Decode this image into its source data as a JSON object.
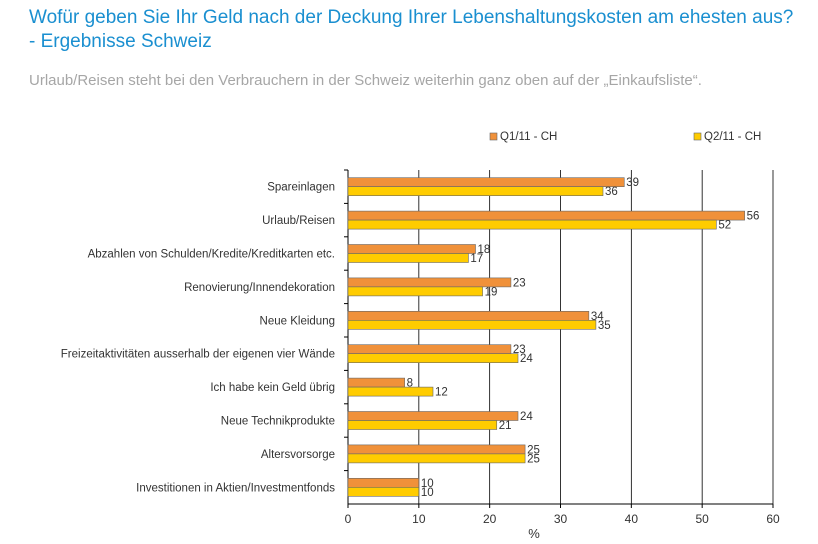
{
  "title": "Wofür geben Sie Ihr Geld nach der Deckung Ihrer Lebenshaltungskosten am ehesten aus? - Ergebnisse Schweiz",
  "subtitle": "Urlaub/Reisen steht bei den Verbrauchern in der Schweiz weiterhin ganz oben auf der „Einkaufsliste“.",
  "chart_data": {
    "type": "bar",
    "orientation": "horizontal",
    "categories": [
      "Spareinlagen",
      "Urlaub/Reisen",
      "Abzahlen von Schulden/Kredite/Kreditkarten etc.",
      "Renovierung/Innendekoration",
      "Neue Kleidung",
      "Freizeitaktivitäten ausserhalb der eigenen vier Wände",
      "Ich habe kein Geld übrig",
      "Neue Technikprodukte",
      "Altersvorsorge",
      "Investitionen in Aktien/Investmentfonds"
    ],
    "series": [
      {
        "name": "Q1/11 - CH",
        "color": "#f0913a",
        "values": [
          39,
          56,
          18,
          23,
          34,
          23,
          8,
          24,
          25,
          10
        ]
      },
      {
        "name": "Q2/11 - CH",
        "color": "#ffcc00",
        "values": [
          36,
          52,
          17,
          19,
          35,
          24,
          12,
          21,
          25,
          10
        ]
      }
    ],
    "xlabel": "%",
    "xlim": [
      0,
      60
    ],
    "xticks": [
      0,
      10,
      20,
      30,
      40,
      50,
      60
    ],
    "grid": true,
    "legend_position": "top"
  }
}
